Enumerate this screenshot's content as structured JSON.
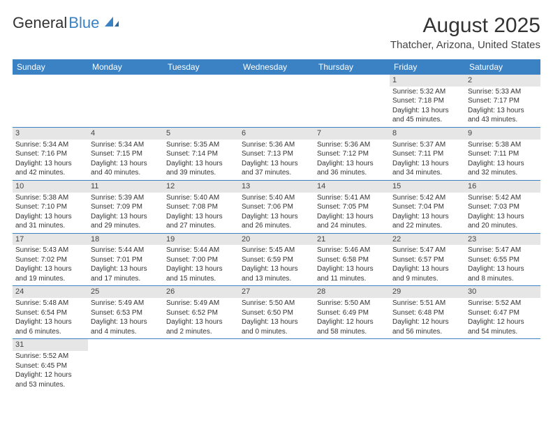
{
  "logo": {
    "text1": "General",
    "text2": "Blue"
  },
  "title": "August 2025",
  "location": "Thatcher, Arizona, United States",
  "colors": {
    "header_bg": "#3b82c4",
    "header_text": "#ffffff",
    "daynum_bg": "#e6e6e6",
    "row_border": "#3b82c4",
    "text": "#333333"
  },
  "day_headers": [
    "Sunday",
    "Monday",
    "Tuesday",
    "Wednesday",
    "Thursday",
    "Friday",
    "Saturday"
  ],
  "weeks": [
    [
      null,
      null,
      null,
      null,
      null,
      {
        "d": "1",
        "rise": "5:32 AM",
        "set": "7:18 PM",
        "dl": "13 hours and 45 minutes."
      },
      {
        "d": "2",
        "rise": "5:33 AM",
        "set": "7:17 PM",
        "dl": "13 hours and 43 minutes."
      }
    ],
    [
      {
        "d": "3",
        "rise": "5:34 AM",
        "set": "7:16 PM",
        "dl": "13 hours and 42 minutes."
      },
      {
        "d": "4",
        "rise": "5:34 AM",
        "set": "7:15 PM",
        "dl": "13 hours and 40 minutes."
      },
      {
        "d": "5",
        "rise": "5:35 AM",
        "set": "7:14 PM",
        "dl": "13 hours and 39 minutes."
      },
      {
        "d": "6",
        "rise": "5:36 AM",
        "set": "7:13 PM",
        "dl": "13 hours and 37 minutes."
      },
      {
        "d": "7",
        "rise": "5:36 AM",
        "set": "7:12 PM",
        "dl": "13 hours and 36 minutes."
      },
      {
        "d": "8",
        "rise": "5:37 AM",
        "set": "7:11 PM",
        "dl": "13 hours and 34 minutes."
      },
      {
        "d": "9",
        "rise": "5:38 AM",
        "set": "7:11 PM",
        "dl": "13 hours and 32 minutes."
      }
    ],
    [
      {
        "d": "10",
        "rise": "5:38 AM",
        "set": "7:10 PM",
        "dl": "13 hours and 31 minutes."
      },
      {
        "d": "11",
        "rise": "5:39 AM",
        "set": "7:09 PM",
        "dl": "13 hours and 29 minutes."
      },
      {
        "d": "12",
        "rise": "5:40 AM",
        "set": "7:08 PM",
        "dl": "13 hours and 27 minutes."
      },
      {
        "d": "13",
        "rise": "5:40 AM",
        "set": "7:06 PM",
        "dl": "13 hours and 26 minutes."
      },
      {
        "d": "14",
        "rise": "5:41 AM",
        "set": "7:05 PM",
        "dl": "13 hours and 24 minutes."
      },
      {
        "d": "15",
        "rise": "5:42 AM",
        "set": "7:04 PM",
        "dl": "13 hours and 22 minutes."
      },
      {
        "d": "16",
        "rise": "5:42 AM",
        "set": "7:03 PM",
        "dl": "13 hours and 20 minutes."
      }
    ],
    [
      {
        "d": "17",
        "rise": "5:43 AM",
        "set": "7:02 PM",
        "dl": "13 hours and 19 minutes."
      },
      {
        "d": "18",
        "rise": "5:44 AM",
        "set": "7:01 PM",
        "dl": "13 hours and 17 minutes."
      },
      {
        "d": "19",
        "rise": "5:44 AM",
        "set": "7:00 PM",
        "dl": "13 hours and 15 minutes."
      },
      {
        "d": "20",
        "rise": "5:45 AM",
        "set": "6:59 PM",
        "dl": "13 hours and 13 minutes."
      },
      {
        "d": "21",
        "rise": "5:46 AM",
        "set": "6:58 PM",
        "dl": "13 hours and 11 minutes."
      },
      {
        "d": "22",
        "rise": "5:47 AM",
        "set": "6:57 PM",
        "dl": "13 hours and 9 minutes."
      },
      {
        "d": "23",
        "rise": "5:47 AM",
        "set": "6:55 PM",
        "dl": "13 hours and 8 minutes."
      }
    ],
    [
      {
        "d": "24",
        "rise": "5:48 AM",
        "set": "6:54 PM",
        "dl": "13 hours and 6 minutes."
      },
      {
        "d": "25",
        "rise": "5:49 AM",
        "set": "6:53 PM",
        "dl": "13 hours and 4 minutes."
      },
      {
        "d": "26",
        "rise": "5:49 AM",
        "set": "6:52 PM",
        "dl": "13 hours and 2 minutes."
      },
      {
        "d": "27",
        "rise": "5:50 AM",
        "set": "6:50 PM",
        "dl": "13 hours and 0 minutes."
      },
      {
        "d": "28",
        "rise": "5:50 AM",
        "set": "6:49 PM",
        "dl": "12 hours and 58 minutes."
      },
      {
        "d": "29",
        "rise": "5:51 AM",
        "set": "6:48 PM",
        "dl": "12 hours and 56 minutes."
      },
      {
        "d": "30",
        "rise": "5:52 AM",
        "set": "6:47 PM",
        "dl": "12 hours and 54 minutes."
      }
    ],
    [
      {
        "d": "31",
        "rise": "5:52 AM",
        "set": "6:45 PM",
        "dl": "12 hours and 53 minutes."
      },
      null,
      null,
      null,
      null,
      null,
      null
    ]
  ],
  "labels": {
    "sunrise": "Sunrise: ",
    "sunset": "Sunset: ",
    "daylight": "Daylight: "
  }
}
